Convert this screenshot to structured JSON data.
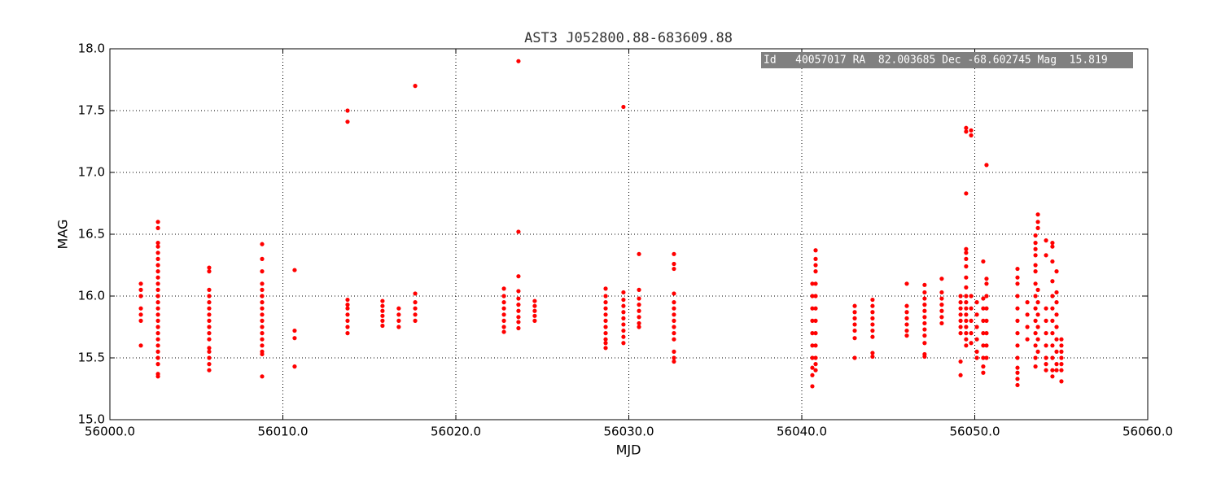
{
  "chart_data": {
    "type": "scatter",
    "title": "AST3 J052800.88-683609.88",
    "xlabel": "MJD",
    "ylabel": "MAG",
    "annotation": "Id   40057017 RA  82.003685 Dec -68.602745 Mag  15.819",
    "color": "#ff0000",
    "grid": true,
    "xlim": [
      56000,
      56060
    ],
    "xticks": [
      {
        "value": 56000,
        "label": "56000.0"
      },
      {
        "value": 56010,
        "label": "56010.0"
      },
      {
        "value": 56020,
        "label": "56020.0"
      },
      {
        "value": 56030,
        "label": "56030.0"
      },
      {
        "value": 56040,
        "label": "56040.0"
      },
      {
        "value": 56050,
        "label": "56050.0"
      },
      {
        "value": 56060,
        "label": "56060.0"
      }
    ],
    "ylim": [
      15,
      18
    ],
    "yticks": [
      {
        "value": 15,
        "label": "15.0"
      },
      15.5,
      {
        "value": 16,
        "label": "16.0"
      },
      16.5,
      {
        "value": 17,
        "label": "17.0"
      },
      17.5,
      {
        "value": 18,
        "label": "18.0"
      }
    ],
    "x": [
      56001.79,
      56001.79,
      56001.79,
      56001.79,
      56001.79,
      56001.79,
      56001.79,
      56002.78,
      56002.78,
      56002.78,
      56002.78,
      56002.78,
      56002.78,
      56002.78,
      56002.78,
      56002.78,
      56002.78,
      56002.78,
      56002.78,
      56002.78,
      56002.78,
      56002.78,
      56002.78,
      56002.78,
      56002.78,
      56002.78,
      56002.78,
      56002.78,
      56002.78,
      56002.78,
      56002.78,
      56002.78,
      56005.74,
      56005.74,
      56005.74,
      56005.74,
      56005.74,
      56005.74,
      56005.74,
      56005.74,
      56005.74,
      56005.74,
      56005.74,
      56005.74,
      56005.74,
      56005.74,
      56005.74,
      56005.74,
      56008.8,
      56008.8,
      56008.8,
      56008.8,
      56008.8,
      56008.8,
      56008.8,
      56008.8,
      56008.8,
      56008.8,
      56008.8,
      56008.8,
      56008.8,
      56008.8,
      56008.8,
      56008.8,
      56008.8,
      56010.68,
      56010.68,
      56010.68,
      56010.68,
      56013.74,
      56013.74,
      56013.74,
      56013.74,
      56013.74,
      56013.74,
      56013.74,
      56013.74,
      56013.74,
      56015.76,
      56015.76,
      56015.76,
      56015.76,
      56015.76,
      56015.76,
      56016.7,
      56016.7,
      56016.7,
      56016.7,
      56017.65,
      56017.65,
      56017.65,
      56017.65,
      56017.65,
      56017.65,
      56022.78,
      56022.78,
      56022.78,
      56022.78,
      56022.78,
      56022.78,
      56022.78,
      56022.78,
      56023.62,
      56023.62,
      56023.62,
      56023.62,
      56023.62,
      56023.62,
      56023.62,
      56023.62,
      56023.62,
      56023.62,
      56024.56,
      56024.56,
      56024.56,
      56024.56,
      56024.56,
      56028.66,
      56028.66,
      56028.66,
      56028.66,
      56028.66,
      56028.66,
      56028.66,
      56028.66,
      56028.66,
      56028.66,
      56028.66,
      56029.69,
      56029.69,
      56029.69,
      56029.69,
      56029.69,
      56029.69,
      56029.69,
      56029.69,
      56029.69,
      56029.69,
      56030.59,
      56030.59,
      56030.59,
      56030.59,
      56030.59,
      56030.59,
      56030.59,
      56030.59,
      56032.61,
      56032.61,
      56032.61,
      56032.61,
      56032.61,
      56032.61,
      56032.61,
      56032.61,
      56032.61,
      56032.61,
      56032.61,
      56032.61,
      56032.61,
      56032.61,
      56040.61,
      56040.61,
      56040.61,
      56040.61,
      56040.61,
      56040.61,
      56040.61,
      56040.61,
      56040.61,
      56040.61,
      56040.8,
      56040.8,
      56040.8,
      56040.8,
      56040.8,
      56040.8,
      56040.8,
      56040.8,
      56040.8,
      56040.8,
      56040.8,
      56040.8,
      56040.8,
      56043.06,
      56043.06,
      56043.06,
      56043.06,
      56043.06,
      56043.06,
      56043.06,
      56044.09,
      56044.09,
      56044.09,
      56044.09,
      56044.09,
      56044.09,
      56044.09,
      56044.09,
      56044.09,
      56046.07,
      56046.07,
      56046.07,
      56046.07,
      56046.07,
      56046.07,
      56046.07,
      56047.1,
      56047.1,
      56047.1,
      56047.1,
      56047.1,
      56047.1,
      56047.1,
      56047.1,
      56047.1,
      56047.1,
      56047.1,
      56047.1,
      56048.09,
      56048.09,
      56048.09,
      56048.09,
      56048.09,
      56048.09,
      56048.09,
      56049.18,
      56049.18,
      56049.18,
      56049.18,
      56049.18,
      56049.18,
      56049.18,
      56049.18,
      56049.18,
      56049.5,
      56049.5,
      56049.5,
      56049.5,
      56049.5,
      56049.5,
      56049.5,
      56049.5,
      56049.5,
      56049.5,
      56049.5,
      56049.5,
      56049.5,
      56049.5,
      56049.5,
      56049.5,
      56049.5,
      56049.5,
      56049.79,
      56049.79,
      56049.79,
      56049.79,
      56049.79,
      56049.79,
      56049.79,
      56050.12,
      56050.12,
      56050.12,
      56050.12,
      56050.12,
      56050.12,
      56050.49,
      56050.49,
      56050.49,
      56050.49,
      56050.49,
      56050.49,
      56050.49,
      56050.49,
      56050.49,
      56050.68,
      56050.68,
      56050.68,
      56050.68,
      56050.68,
      56050.68,
      56050.68,
      56050.68,
      56050.68,
      56052.47,
      56052.47,
      56052.47,
      56052.47,
      56052.47,
      56052.47,
      56052.47,
      56052.47,
      56052.47,
      56052.47,
      56052.47,
      56052.47,
      56052.47,
      56053.04,
      56053.04,
      56053.04,
      56053.04,
      56053.51,
      56053.51,
      56053.51,
      56053.51,
      56053.51,
      56053.51,
      56053.51,
      56053.51,
      56053.51,
      56053.51,
      56053.51,
      56053.51,
      56053.51,
      56053.51,
      56053.65,
      56053.65,
      56053.65,
      56053.65,
      56053.65,
      56053.65,
      56053.65,
      56053.65,
      56053.65,
      56054.12,
      56054.12,
      56054.12,
      56054.12,
      56054.12,
      56054.12,
      56054.12,
      56054.12,
      56054.12,
      56054.49,
      56054.49,
      56054.49,
      56054.49,
      56054.49,
      56054.49,
      56054.49,
      56054.49,
      56054.49,
      56054.49,
      56054.49,
      56054.49,
      56054.73,
      56054.73,
      56054.73,
      56054.73,
      56054.73,
      56054.73,
      56054.73,
      56054.73,
      56054.73,
      56055.01,
      56055.01,
      56055.01,
      56055.01,
      56055.01,
      56055.01,
      56055.01
    ],
    "values": [
      16.1,
      16.05,
      16.0,
      15.9,
      15.85,
      15.8,
      15.6,
      16.6,
      16.55,
      16.43,
      16.4,
      16.35,
      16.3,
      16.25,
      16.2,
      16.15,
      16.1,
      16.05,
      16.0,
      15.95,
      15.9,
      15.85,
      15.8,
      15.75,
      15.7,
      15.65,
      15.6,
      15.55,
      15.5,
      15.45,
      15.37,
      15.35,
      16.23,
      16.2,
      16.05,
      16.0,
      15.95,
      15.9,
      15.85,
      15.8,
      15.75,
      15.7,
      15.65,
      15.58,
      15.55,
      15.5,
      15.45,
      15.4,
      16.42,
      16.3,
      16.2,
      16.1,
      16.05,
      16.0,
      15.95,
      15.9,
      15.85,
      15.8,
      15.75,
      15.7,
      15.65,
      15.6,
      15.55,
      15.53,
      15.35,
      16.21,
      15.72,
      15.66,
      15.43,
      17.5,
      17.41,
      15.97,
      15.93,
      15.9,
      15.85,
      15.8,
      15.75,
      15.7,
      15.96,
      15.92,
      15.88,
      15.84,
      15.8,
      15.76,
      15.9,
      15.85,
      15.8,
      15.75,
      17.7,
      16.02,
      15.95,
      15.9,
      15.85,
      15.8,
      16.06,
      16.0,
      15.95,
      15.9,
      15.85,
      15.8,
      15.75,
      15.71,
      17.9,
      16.52,
      16.16,
      16.04,
      15.98,
      15.93,
      15.88,
      15.83,
      15.79,
      15.74,
      15.96,
      15.92,
      15.88,
      15.84,
      15.8,
      16.06,
      16.0,
      15.95,
      15.9,
      15.85,
      15.8,
      15.75,
      15.7,
      15.65,
      15.62,
      15.58,
      17.53,
      16.03,
      15.97,
      15.92,
      15.87,
      15.82,
      15.77,
      15.72,
      15.67,
      15.62,
      16.34,
      16.05,
      15.98,
      15.93,
      15.88,
      15.83,
      15.78,
      15.75,
      16.34,
      16.26,
      16.22,
      16.02,
      15.95,
      15.9,
      15.85,
      15.8,
      15.75,
      15.7,
      15.65,
      15.55,
      15.5,
      15.47,
      16.1,
      16.0,
      15.9,
      15.8,
      15.7,
      15.6,
      15.5,
      15.42,
      15.36,
      15.27,
      16.37,
      16.3,
      16.25,
      16.2,
      16.1,
      16.0,
      15.9,
      15.8,
      15.7,
      15.6,
      15.5,
      15.45,
      15.4,
      15.92,
      15.87,
      15.82,
      15.77,
      15.72,
      15.66,
      15.5,
      15.97,
      15.92,
      15.87,
      15.82,
      15.77,
      15.72,
      15.67,
      15.54,
      15.51,
      16.1,
      15.92,
      15.87,
      15.82,
      15.77,
      15.72,
      15.68,
      16.09,
      16.03,
      15.98,
      15.93,
      15.88,
      15.83,
      15.78,
      15.73,
      15.68,
      15.62,
      15.53,
      15.51,
      16.14,
      16.03,
      15.98,
      15.93,
      15.88,
      15.83,
      15.78,
      16.0,
      15.95,
      15.9,
      15.85,
      15.8,
      15.75,
      15.7,
      15.36,
      15.47,
      17.36,
      17.33,
      16.83,
      16.38,
      16.35,
      16.3,
      16.24,
      16.15,
      16.07,
      16.0,
      15.95,
      15.9,
      15.85,
      15.8,
      15.75,
      15.7,
      15.65,
      15.6,
      17.34,
      17.3,
      16.0,
      15.9,
      15.8,
      15.7,
      15.62,
      15.95,
      15.85,
      15.75,
      15.65,
      15.55,
      15.5,
      16.28,
      15.98,
      15.9,
      15.8,
      15.7,
      15.6,
      15.5,
      15.43,
      15.38,
      17.06,
      16.14,
      16.1,
      16.0,
      15.9,
      15.8,
      15.7,
      15.6,
      15.5,
      16.22,
      16.15,
      16.1,
      16.0,
      15.9,
      15.8,
      15.7,
      15.6,
      15.5,
      15.42,
      15.38,
      15.33,
      15.28,
      15.95,
      15.85,
      15.75,
      15.65,
      16.49,
      16.43,
      16.38,
      16.33,
      16.25,
      16.2,
      16.1,
      16.0,
      15.9,
      15.8,
      15.7,
      15.6,
      15.5,
      15.43,
      16.66,
      16.6,
      16.55,
      16.05,
      15.95,
      15.85,
      15.75,
      15.65,
      15.55,
      16.45,
      16.33,
      15.9,
      15.8,
      15.7,
      15.6,
      15.5,
      15.45,
      15.4,
      16.43,
      16.4,
      16.28,
      16.12,
      16.0,
      15.9,
      15.8,
      15.7,
      15.6,
      15.5,
      15.4,
      15.35,
      16.2,
      16.03,
      15.95,
      15.85,
      15.75,
      15.65,
      15.55,
      15.45,
      15.4,
      15.65,
      15.6,
      15.55,
      15.5,
      15.45,
      15.4,
      15.31
    ]
  }
}
